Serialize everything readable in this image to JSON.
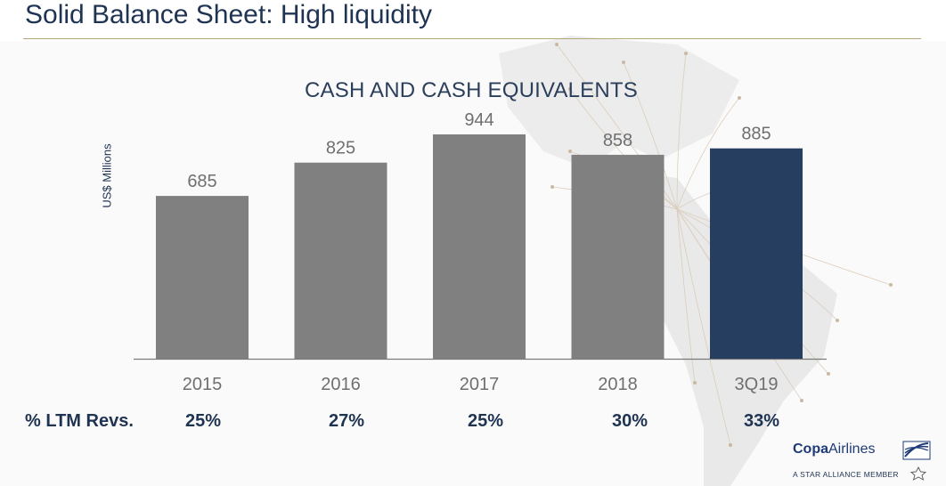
{
  "title": "Solid Balance Sheet: High liquidity",
  "chart_data": {
    "type": "bar",
    "title": "CASH AND CASH EQUIVALENTS",
    "ylabel": "US$ Millions",
    "xlabel": "",
    "categories": [
      "2015",
      "2016",
      "2017",
      "2018",
      "3Q19"
    ],
    "values": [
      685,
      825,
      944,
      858,
      885
    ],
    "ylim": [
      0,
      1000
    ],
    "highlight_index": 4,
    "colors": {
      "bar": "#808080",
      "highlight": "#263e5f",
      "value_label": "#6f6f6f",
      "category_label": "#6f6f6f"
    }
  },
  "ltm_row": {
    "label": "% LTM Revs.",
    "values": [
      "25%",
      "27%",
      "25%",
      "30%",
      "33%"
    ]
  },
  "logo": {
    "name_bold": "Copa",
    "name_rest": "Airlines",
    "tagline": "A STAR ALLIANCE MEMBER"
  },
  "colors": {
    "title": "#1f3352",
    "rule": "#b5a777"
  }
}
